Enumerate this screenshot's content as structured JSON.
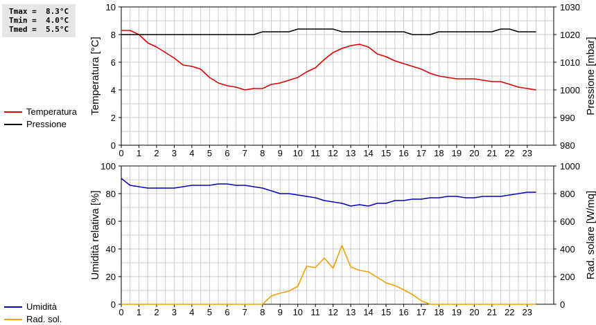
{
  "stats": {
    "tmax": "Tmax =  8.3°C",
    "tmin": "Tmin =  4.0°C",
    "tmed": "Tmed =  5.5°C"
  },
  "colors": {
    "temperature": "#dd0000",
    "pressure": "#000000",
    "humidity": "#0000bb",
    "radiation": "#f0a000",
    "grid": "#cccccc",
    "stats_bg": "#e6e6e6"
  },
  "chart_data": [
    {
      "type": "line",
      "x_ticks": [
        "0",
        "1",
        "2",
        "3",
        "4",
        "5",
        "6",
        "7",
        "8",
        "9",
        "10",
        "11",
        "12",
        "13",
        "14",
        "15",
        "16",
        "17",
        "18",
        "19",
        "20",
        "21",
        "22",
        "23"
      ],
      "xlim": [
        0,
        24.5
      ],
      "ylabel_left": "Temperatura [°C]",
      "ylabel_right": "Pressione [mbar]",
      "ylim_left": [
        0,
        10
      ],
      "ylim_right": [
        980,
        1030
      ],
      "yticks_left": [
        "0",
        "2",
        "4",
        "6",
        "8",
        "10"
      ],
      "yticks_right": [
        "980",
        "990",
        "1000",
        "1010",
        "1020",
        "1030"
      ],
      "grid": true,
      "legend_position": "left",
      "series": [
        {
          "name": "Temperatura",
          "axis": "left",
          "x": [
            0,
            0.5,
            1,
            1.5,
            2,
            2.5,
            3,
            3.5,
            4,
            4.5,
            5,
            5.5,
            6,
            6.5,
            7,
            7.5,
            8,
            8.5,
            9,
            9.5,
            10,
            10.5,
            11,
            11.5,
            12,
            12.5,
            13,
            13.5,
            14,
            14.5,
            15,
            15.5,
            16,
            16.5,
            17,
            17.5,
            18,
            18.5,
            19,
            19.5,
            20,
            20.5,
            21,
            21.5,
            22,
            22.5,
            23,
            23.5
          ],
          "y": [
            8.3,
            8.3,
            8.0,
            7.4,
            7.1,
            6.7,
            6.3,
            5.8,
            5.7,
            5.5,
            4.9,
            4.5,
            4.3,
            4.2,
            4.0,
            4.1,
            4.1,
            4.4,
            4.5,
            4.7,
            4.9,
            5.3,
            5.6,
            6.2,
            6.7,
            7.0,
            7.2,
            7.3,
            7.1,
            6.6,
            6.4,
            6.1,
            5.9,
            5.7,
            5.5,
            5.2,
            5.0,
            4.9,
            4.8,
            4.8,
            4.8,
            4.7,
            4.6,
            4.6,
            4.4,
            4.2,
            4.1,
            4.0
          ]
        },
        {
          "name": "Pressione",
          "axis": "right",
          "x": [
            0,
            0.5,
            1,
            1.5,
            2,
            2.5,
            3,
            3.5,
            4,
            4.5,
            5,
            5.5,
            6,
            6.5,
            7,
            7.5,
            8,
            8.5,
            9,
            9.5,
            10,
            10.5,
            11,
            11.5,
            12,
            12.5,
            13,
            13.5,
            14,
            14.5,
            15,
            15.5,
            16,
            16.5,
            17,
            17.5,
            18,
            18.5,
            19,
            19.5,
            20,
            20.5,
            21,
            21.5,
            22,
            22.5,
            23,
            23.5
          ],
          "y": [
            1020,
            1020,
            1020,
            1020,
            1020,
            1020,
            1020,
            1020,
            1020,
            1020,
            1020,
            1020,
            1020,
            1020,
            1020,
            1020,
            1021,
            1021,
            1021,
            1021,
            1022,
            1022,
            1022,
            1022,
            1022,
            1021,
            1021,
            1021,
            1021,
            1021,
            1021,
            1021,
            1021,
            1020,
            1020,
            1020,
            1021,
            1021,
            1021,
            1021,
            1021,
            1021,
            1021,
            1022,
            1022,
            1021,
            1021,
            1021
          ]
        }
      ]
    },
    {
      "type": "line",
      "x_ticks": [
        "0",
        "1",
        "2",
        "3",
        "4",
        "5",
        "6",
        "7",
        "8",
        "9",
        "10",
        "11",
        "12",
        "13",
        "14",
        "15",
        "16",
        "17",
        "18",
        "19",
        "20",
        "21",
        "22",
        "23"
      ],
      "xlim": [
        0,
        24.5
      ],
      "ylabel_left": "Umidità relativa [%]",
      "ylabel_right": "Rad. solare [W/mq]",
      "ylim_left": [
        0,
        100
      ],
      "ylim_right": [
        0,
        1000
      ],
      "yticks_left": [
        "0",
        "20",
        "40",
        "60",
        "80",
        "100"
      ],
      "yticks_right": [
        "0",
        "200",
        "400",
        "600",
        "800",
        "1000"
      ],
      "grid": true,
      "legend_position": "left",
      "series": [
        {
          "name": "Umidità",
          "axis": "left",
          "x": [
            0,
            0.5,
            1,
            1.5,
            2,
            2.5,
            3,
            3.5,
            4,
            4.5,
            5,
            5.5,
            6,
            6.5,
            7,
            7.5,
            8,
            8.5,
            9,
            9.5,
            10,
            10.5,
            11,
            11.5,
            12,
            12.5,
            13,
            13.5,
            14,
            14.5,
            15,
            15.5,
            16,
            16.5,
            17,
            17.5,
            18,
            18.5,
            19,
            19.5,
            20,
            20.5,
            21,
            21.5,
            22,
            22.5,
            23,
            23.5
          ],
          "y": [
            91,
            86,
            85,
            84,
            84,
            84,
            84,
            85,
            86,
            86,
            86,
            87,
            87,
            86,
            86,
            85,
            84,
            82,
            80,
            80,
            79,
            78,
            77,
            75,
            74,
            73,
            71,
            72,
            71,
            73,
            73,
            75,
            75,
            76,
            76,
            77,
            77,
            78,
            78,
            77,
            77,
            78,
            78,
            78,
            79,
            80,
            81,
            81
          ]
        },
        {
          "name": "Rad. sol.",
          "axis": "right",
          "x": [
            0,
            0.5,
            1,
            1.5,
            2,
            2.5,
            3,
            3.5,
            4,
            4.5,
            5,
            5.5,
            6,
            6.5,
            7,
            7.5,
            8,
            8.5,
            9,
            9.5,
            10,
            10.5,
            11,
            11.5,
            12,
            12.5,
            13,
            13.5,
            14,
            14.5,
            15,
            15.5,
            16,
            16.5,
            17,
            17.5,
            18,
            18.5,
            19,
            19.5,
            20,
            20.5,
            21,
            21.5,
            22,
            22.5,
            23,
            23.5
          ],
          "y": [
            0,
            0,
            0,
            0,
            0,
            0,
            0,
            0,
            0,
            0,
            0,
            0,
            0,
            0,
            0,
            0,
            0,
            60,
            80,
            95,
            130,
            275,
            265,
            335,
            260,
            425,
            270,
            245,
            235,
            195,
            155,
            135,
            105,
            70,
            25,
            0,
            0,
            0,
            0,
            0,
            0,
            0,
            0,
            0,
            0,
            0,
            0,
            0
          ]
        }
      ]
    }
  ]
}
